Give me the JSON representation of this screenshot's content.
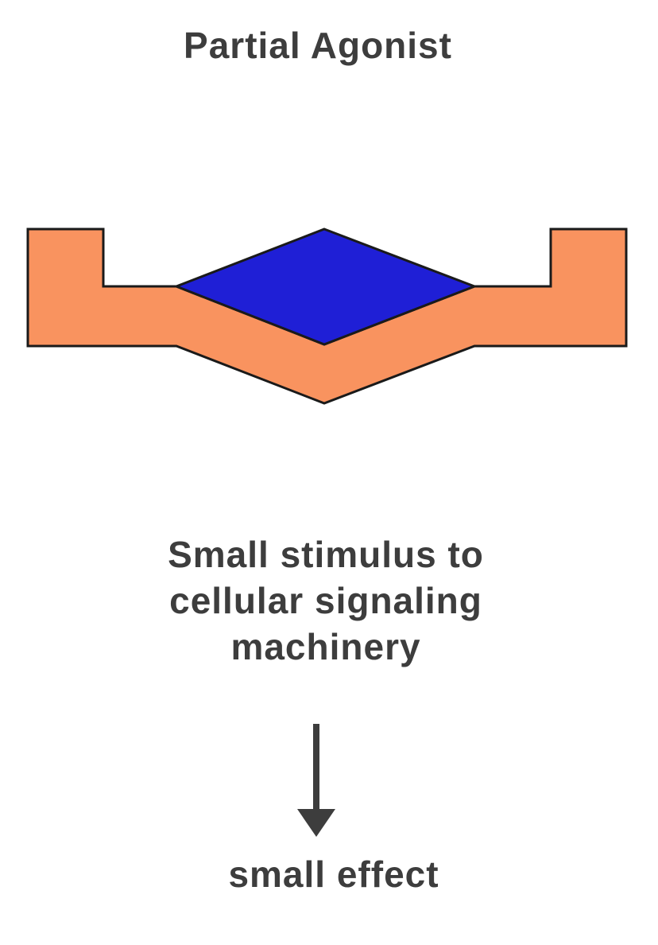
{
  "title": "Partial Agonist",
  "caption": {
    "line1": "Small stimulus to",
    "line2": "cellular signaling",
    "line3": "machinery"
  },
  "result": "small effect",
  "colors": {
    "receptor": "#F9935F",
    "ligand": "#1F1FD6",
    "outline": "#1a1a1a",
    "text": "#3d3d3d"
  },
  "icons": {
    "arrow": "down-arrow-icon"
  }
}
